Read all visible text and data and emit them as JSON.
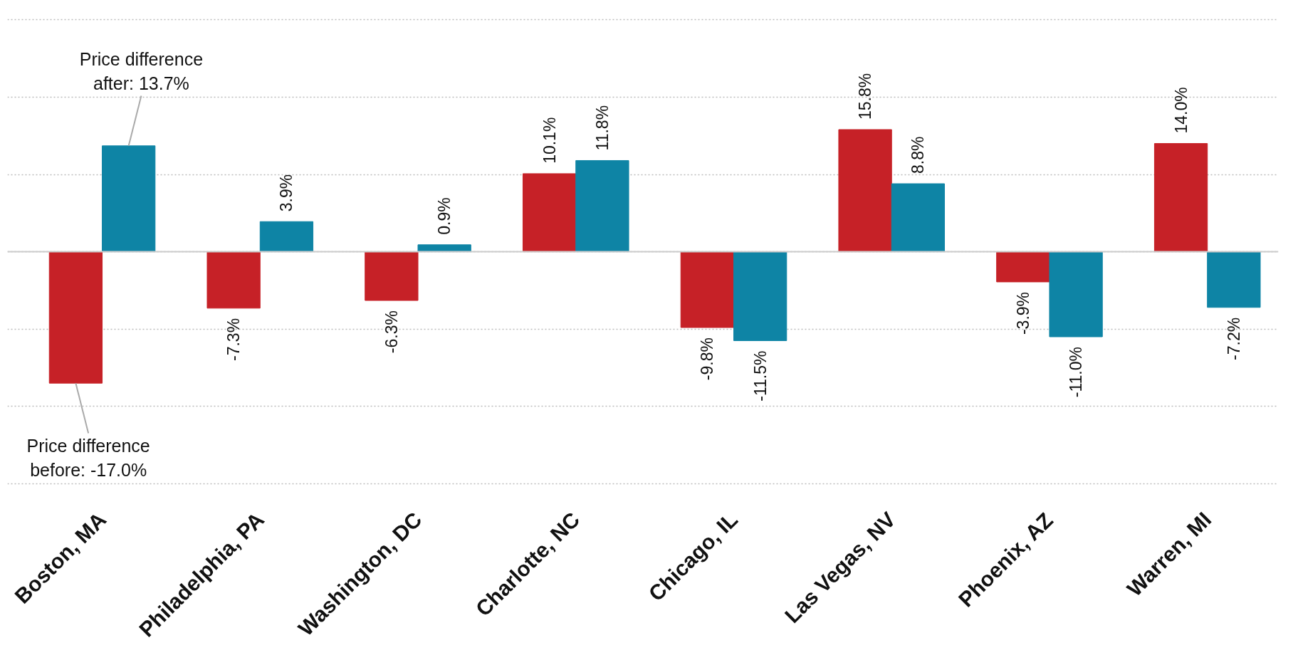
{
  "chart_data": {
    "type": "bar",
    "categories": [
      "Boston, MA",
      "Philadelphia, PA",
      "Washington, DC",
      "Charlotte, NC",
      "Chicago, IL",
      "Las Vegas, NV",
      "Phoenix, AZ",
      "Warren, MI"
    ],
    "series": [
      {
        "color": "#c62127",
        "values": [
          -17.0,
          -7.3,
          -6.3,
          10.1,
          -9.8,
          15.8,
          -3.9,
          14.0
        ],
        "value_labels": [
          null,
          "-7.3%",
          "-6.3%",
          "10.1%",
          "-9.8%",
          "15.8%",
          "-3.9%",
          "14.0%"
        ]
      },
      {
        "color": "#0e84a5",
        "values": [
          13.7,
          3.9,
          0.9,
          11.8,
          -11.5,
          8.8,
          -11.0,
          -7.2
        ],
        "value_labels": [
          null,
          "3.9%",
          "0.9%",
          "11.8%",
          "-11.5%",
          "8.8%",
          "-11.0%",
          "-7.2%"
        ]
      }
    ],
    "grid": "y",
    "tick_labels": "x",
    "ref_lines": [
      {
        "axis": "y",
        "value": 0,
        "color": "#cccccc"
      }
    ],
    "annotations": [
      "Price difference\nbefore: -17.0%",
      "Price difference\nafter: 13.7%"
    ]
  }
}
